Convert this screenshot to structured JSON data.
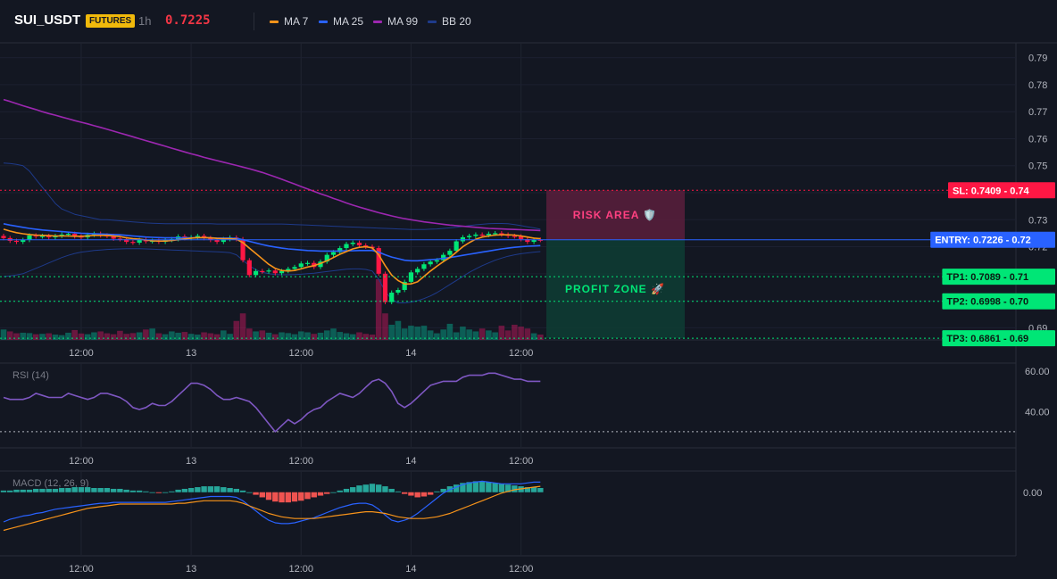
{
  "header": {
    "symbol": "SUI_USDT",
    "badge": "FUTURES",
    "timeframe": "1h",
    "last_price": "0.7225",
    "legend": [
      {
        "label": "MA 7",
        "color": "#f7931a"
      },
      {
        "label": "MA 25",
        "color": "#2962ff"
      },
      {
        "label": "MA 99",
        "color": "#9c27b0"
      },
      {
        "label": "BB 20",
        "color": "#1e3a8a"
      }
    ]
  },
  "colors": {
    "up": "#089981",
    "down": "#f23645",
    "up_bright": "#00e676",
    "down_bright": "#ff1744"
  },
  "chart_data": [
    {
      "type": "candlestick",
      "panel": "price",
      "x_tick_labels": [
        "12:00",
        "13",
        "12:00",
        "14",
        "12:00"
      ],
      "y_ticks": [
        0.69,
        0.7,
        0.71,
        0.72,
        0.73,
        0.74,
        0.75,
        0.76,
        0.77,
        0.78,
        0.79
      ],
      "y_tick_labels": [
        "0.69",
        "0.70",
        "0.71",
        "0.72",
        "0.73",
        "0.74",
        "0.75",
        "0.76",
        "0.77",
        "0.78",
        "0.79"
      ],
      "ylim": [
        0.6855,
        0.7955
      ],
      "closes": [
        0.7232,
        0.7222,
        0.7218,
        0.7225,
        0.7242,
        0.7238,
        0.724,
        0.7235,
        0.724,
        0.7245,
        0.7248,
        0.7238,
        0.7235,
        0.7244,
        0.7248,
        0.7242,
        0.724,
        0.723,
        0.7228,
        0.7218,
        0.7215,
        0.7225,
        0.722,
        0.7222,
        0.7218,
        0.7225,
        0.7228,
        0.7238,
        0.7232,
        0.7235,
        0.724,
        0.7232,
        0.7225,
        0.7218,
        0.7228,
        0.7234,
        0.7228,
        0.715,
        0.7095,
        0.711,
        0.7108,
        0.7112,
        0.7102,
        0.711,
        0.7118,
        0.7125,
        0.7138,
        0.714,
        0.7125,
        0.7145,
        0.717,
        0.718,
        0.7195,
        0.721,
        0.7215,
        0.7205,
        0.72,
        0.7195,
        0.71,
        0.6995,
        0.703,
        0.704,
        0.707,
        0.7105,
        0.7118,
        0.7135,
        0.7145,
        0.715,
        0.717,
        0.7185,
        0.722,
        0.7235,
        0.724,
        0.7245,
        0.7243,
        0.7248,
        0.725,
        0.7245,
        0.724,
        0.7238,
        0.7228,
        0.7218,
        0.7226,
        0.7225
      ],
      "volumes": [
        0.55,
        0.45,
        0.35,
        0.38,
        0.36,
        0.3,
        0.32,
        0.35,
        0.28,
        0.25,
        0.38,
        0.52,
        0.34,
        0.3,
        0.4,
        0.45,
        0.35,
        0.3,
        0.48,
        0.32,
        0.36,
        0.4,
        0.55,
        0.6,
        0.35,
        0.3,
        0.45,
        0.38,
        0.42,
        0.32,
        0.28,
        0.4,
        0.35,
        0.3,
        0.5,
        0.32,
        1.0,
        1.4,
        0.6,
        0.45,
        0.5,
        0.38,
        0.3,
        0.4,
        0.36,
        0.3,
        0.45,
        0.4,
        0.32,
        0.38,
        0.5,
        0.6,
        0.42,
        0.35,
        0.3,
        0.4,
        0.32,
        0.28,
        3.2,
        1.4,
        0.8,
        1.0,
        0.6,
        0.75,
        0.7,
        0.75,
        0.5,
        0.35,
        0.55,
        0.85,
        0.4,
        0.7,
        0.55,
        0.45,
        0.6,
        0.5,
        0.4,
        0.75,
        0.5,
        0.8,
        0.7,
        0.6,
        0.35,
        0.28
      ],
      "ma7": [
        0.7265,
        0.7258,
        0.7252,
        0.7248,
        0.7245,
        0.7243,
        0.7242,
        0.7241,
        0.724,
        0.724,
        0.724,
        0.7239,
        0.7239,
        0.724,
        0.7242,
        0.7242,
        0.7242,
        0.724,
        0.7238,
        0.7233,
        0.723,
        0.7228,
        0.7225,
        0.7222,
        0.7221,
        0.7221,
        0.7223,
        0.7226,
        0.7229,
        0.7232,
        0.7234,
        0.7234,
        0.7233,
        0.7231,
        0.723,
        0.723,
        0.7228,
        0.7215,
        0.7195,
        0.7175,
        0.7155,
        0.7135,
        0.712,
        0.7112,
        0.711,
        0.7112,
        0.7118,
        0.7125,
        0.713,
        0.7138,
        0.7148,
        0.716,
        0.7172,
        0.7182,
        0.7192,
        0.7198,
        0.72,
        0.7196,
        0.717,
        0.713,
        0.7095,
        0.7075,
        0.7062,
        0.7062,
        0.707,
        0.709,
        0.711,
        0.7128,
        0.7145,
        0.716,
        0.718,
        0.72,
        0.7215,
        0.7228,
        0.7236,
        0.724,
        0.7243,
        0.7244,
        0.7244,
        0.7243,
        0.724,
        0.7236,
        0.7232,
        0.723
      ],
      "ma25": [
        0.7285,
        0.728,
        0.7276,
        0.7272,
        0.7268,
        0.7265,
        0.7262,
        0.726,
        0.7258,
        0.7256,
        0.7254,
        0.7252,
        0.725,
        0.7249,
        0.7248,
        0.7247,
        0.7246,
        0.7245,
        0.7244,
        0.7242,
        0.724,
        0.7238,
        0.7236,
        0.7235,
        0.7234,
        0.7233,
        0.7233,
        0.7233,
        0.7233,
        0.7233,
        0.7233,
        0.7233,
        0.7233,
        0.7232,
        0.7232,
        0.7232,
        0.7231,
        0.7226,
        0.722,
        0.7214,
        0.7208,
        0.7203,
        0.7199,
        0.7195,
        0.7192,
        0.719,
        0.7188,
        0.7186,
        0.7185,
        0.7184,
        0.7184,
        0.7184,
        0.7184,
        0.7185,
        0.7185,
        0.7186,
        0.7186,
        0.7186,
        0.718,
        0.717,
        0.7162,
        0.7156,
        0.715,
        0.7148,
        0.7148,
        0.715,
        0.7152,
        0.7154,
        0.7157,
        0.716,
        0.7164,
        0.7168,
        0.7172,
        0.7176,
        0.718,
        0.7184,
        0.7188,
        0.7192,
        0.7195,
        0.7198,
        0.72,
        0.7202,
        0.7203,
        0.7204
      ],
      "ma99": [
        0.7745,
        0.7738,
        0.773,
        0.7722,
        0.7715,
        0.7708,
        0.77,
        0.7693,
        0.7687,
        0.768,
        0.7674,
        0.7667,
        0.7661,
        0.7655,
        0.7648,
        0.7642,
        0.7635,
        0.7628,
        0.7621,
        0.7614,
        0.7607,
        0.76,
        0.7593,
        0.7586,
        0.7579,
        0.7572,
        0.7565,
        0.7558,
        0.7551,
        0.7544,
        0.7538,
        0.7531,
        0.7525,
        0.7519,
        0.7513,
        0.7507,
        0.7501,
        0.7495,
        0.7489,
        0.7482,
        0.7475,
        0.7467,
        0.7459,
        0.745,
        0.7441,
        0.7432,
        0.7423,
        0.7414,
        0.7405,
        0.7396,
        0.7388,
        0.7379,
        0.7371,
        0.7362,
        0.7354,
        0.7347,
        0.734,
        0.7333,
        0.7326,
        0.732,
        0.7314,
        0.7309,
        0.7304,
        0.73,
        0.7296,
        0.7292,
        0.7289,
        0.7286,
        0.7283,
        0.728,
        0.7278,
        0.7276,
        0.7274,
        0.7272,
        0.727,
        0.7268,
        0.7267,
        0.7266,
        0.7265,
        0.7264,
        0.7263,
        0.7262,
        0.7261,
        0.726
      ],
      "bb_upper": [
        0.751,
        0.7508,
        0.7505,
        0.75,
        0.748,
        0.745,
        0.742,
        0.739,
        0.736,
        0.734,
        0.733,
        0.732,
        0.7315,
        0.731,
        0.7305,
        0.73,
        0.73,
        0.7298,
        0.7296,
        0.7294,
        0.7292,
        0.729,
        0.7288,
        0.7287,
        0.7286,
        0.7285,
        0.7285,
        0.7285,
        0.7285,
        0.7285,
        0.7285,
        0.7285,
        0.7285,
        0.7284,
        0.7284,
        0.7284,
        0.7284,
        0.7284,
        0.7284,
        0.7284,
        0.7284,
        0.7284,
        0.7284,
        0.7284,
        0.7283,
        0.7282,
        0.7281,
        0.728,
        0.7279,
        0.7278,
        0.7277,
        0.7276,
        0.7275,
        0.7274,
        0.7273,
        0.7272,
        0.7271,
        0.727,
        0.7269,
        0.7268,
        0.7267,
        0.7266,
        0.7265,
        0.7264,
        0.7264,
        0.7264,
        0.7265,
        0.7266,
        0.7268,
        0.727,
        0.7272,
        0.7275,
        0.7278,
        0.7281,
        0.7283,
        0.7285,
        0.7286,
        0.7286,
        0.7285,
        0.7282,
        0.7278,
        0.7274,
        0.727,
        0.7265
      ],
      "bb_lower": [
        0.709,
        0.7092,
        0.7095,
        0.71,
        0.711,
        0.712,
        0.713,
        0.714,
        0.715,
        0.716,
        0.7168,
        0.7175,
        0.718,
        0.7183,
        0.7186,
        0.7188,
        0.719,
        0.7191,
        0.7192,
        0.7193,
        0.7193,
        0.7193,
        0.7192,
        0.7191,
        0.719,
        0.7189,
        0.7188,
        0.7187,
        0.7186,
        0.7185,
        0.7184,
        0.7183,
        0.7182,
        0.7181,
        0.718,
        0.7178,
        0.717,
        0.715,
        0.713,
        0.7115,
        0.7105,
        0.71,
        0.7097,
        0.7096,
        0.7096,
        0.7097,
        0.7098,
        0.71,
        0.7102,
        0.7105,
        0.7108,
        0.7111,
        0.7114,
        0.7117,
        0.7118,
        0.7118,
        0.7116,
        0.711,
        0.708,
        0.7035,
        0.7005,
        0.6992,
        0.6992,
        0.6995,
        0.7,
        0.7008,
        0.7018,
        0.703,
        0.7045,
        0.706,
        0.7075,
        0.709,
        0.7105,
        0.7118,
        0.713,
        0.714,
        0.715,
        0.7158,
        0.7165,
        0.717,
        0.7174,
        0.7177,
        0.718,
        0.7182
      ],
      "levels": [
        {
          "key": "sl",
          "label": "SL: 0.7409",
          "axis_label": "0.74",
          "value": 0.7409,
          "color": "#ff1744",
          "style": "dotted"
        },
        {
          "key": "entry",
          "label": "ENTRY: 0.7226",
          "axis_label": "0.72",
          "value": 0.7226,
          "color": "#2962ff",
          "style": "solid"
        },
        {
          "key": "tp1",
          "label": "TP1: 0.7089",
          "axis_label": "0.71",
          "value": 0.7089,
          "color": "#00e676",
          "style": "dotted"
        },
        {
          "key": "tp2",
          "label": "TP2: 0.6998",
          "axis_label": "0.70",
          "value": 0.6998,
          "color": "#00e676",
          "style": "dotted"
        },
        {
          "key": "tp3",
          "label": "TP3: 0.6861",
          "axis_label": "0.69",
          "value": 0.6861,
          "color": "#00e676",
          "style": "dotted"
        }
      ],
      "zones": [
        {
          "key": "risk",
          "label": "RISK AREA 🛡️",
          "from": 0.7226,
          "to": 0.7409,
          "fill": "#5a1f3c",
          "text_color": "#ff4081"
        },
        {
          "key": "profit",
          "label": "PROFIT ZONE 🚀",
          "from": 0.6861,
          "to": 0.7226,
          "fill": "#0e3d34",
          "text_color": "#00e676"
        }
      ]
    },
    {
      "type": "line",
      "panel": "rsi",
      "title": "RSI (14)",
      "y_ticks": [
        40,
        60
      ],
      "y_tick_labels": [
        "40.00",
        "60.00"
      ],
      "ylim": [
        22,
        64
      ],
      "reference_line": 30,
      "x_tick_labels": [
        "12:00",
        "13",
        "12:00",
        "14",
        "12:00"
      ],
      "values": [
        47,
        46,
        46,
        46,
        47,
        49,
        48,
        47,
        47,
        47,
        49,
        48,
        47,
        46,
        47,
        49,
        49,
        48,
        47,
        45,
        42,
        41,
        42,
        44,
        43,
        43,
        45,
        48,
        51,
        54,
        54,
        53,
        51,
        48,
        46,
        46,
        47,
        46,
        45,
        42,
        38,
        34,
        30,
        33,
        36,
        34,
        36,
        39,
        41,
        42,
        45,
        47,
        49,
        48,
        47,
        49,
        52,
        55,
        56,
        54,
        50,
        44,
        42,
        44,
        47,
        50,
        53,
        54,
        55,
        55,
        55,
        57,
        58,
        58,
        58,
        59,
        59,
        58,
        57,
        56,
        56,
        55,
        55,
        55
      ]
    },
    {
      "type": "bar+line",
      "panel": "macd",
      "title": "MACD (12, 26, 9)",
      "y_ticks": [
        0.0
      ],
      "y_tick_labels": [
        "0.00"
      ],
      "ylim": [
        -0.0075,
        0.0025
      ],
      "x_tick_labels": [
        "12:00",
        "13",
        "12:00",
        "14",
        "12:00"
      ],
      "histogram": [
        0.0002,
        0.0002,
        0.0003,
        0.0003,
        0.0003,
        0.0004,
        0.0004,
        0.0004,
        0.0004,
        0.0005,
        0.0005,
        0.0006,
        0.0006,
        0.0006,
        0.0005,
        0.0005,
        0.0005,
        0.0004,
        0.0004,
        0.0003,
        0.0002,
        0.0002,
        0.0001,
        0.0,
        -0.0001,
        0.0,
        0.0001,
        0.0003,
        0.0004,
        0.0005,
        0.0006,
        0.0007,
        0.0007,
        0.0007,
        0.0006,
        0.0005,
        0.0004,
        0.0002,
        0.0,
        -0.0003,
        -0.0006,
        -0.0009,
        -0.0011,
        -0.0012,
        -0.0012,
        -0.0011,
        -0.001,
        -0.0008,
        -0.0006,
        -0.0004,
        -0.0002,
        0.0,
        0.0002,
        0.0004,
        0.0006,
        0.0008,
        0.0009,
        0.001,
        0.0009,
        0.0007,
        0.0004,
        0.0001,
        -0.0002,
        -0.0004,
        -0.0006,
        -0.0005,
        -0.0003,
        0.0001,
        0.0004,
        0.0007,
        0.0009,
        0.0011,
        0.0012,
        0.0013,
        0.0013,
        0.0012,
        0.0011,
        0.001,
        0.0009,
        0.0008,
        0.0007,
        0.0006,
        0.0006,
        0.0005
      ],
      "macd": [
        -0.0035,
        -0.0032,
        -0.003,
        -0.0028,
        -0.0027,
        -0.0025,
        -0.0024,
        -0.0022,
        -0.002,
        -0.0019,
        -0.0018,
        -0.0017,
        -0.0016,
        -0.0015,
        -0.0014,
        -0.0013,
        -0.0013,
        -0.0012,
        -0.0012,
        -0.0012,
        -0.0012,
        -0.0012,
        -0.0012,
        -0.0012,
        -0.0012,
        -0.0012,
        -0.0011,
        -0.001,
        -0.0009,
        -0.0008,
        -0.0007,
        -0.0006,
        -0.0005,
        -0.0005,
        -0.0005,
        -0.0005,
        -0.0006,
        -0.001,
        -0.0016,
        -0.0022,
        -0.0028,
        -0.0033,
        -0.0036,
        -0.0037,
        -0.0037,
        -0.0036,
        -0.0034,
        -0.0032,
        -0.003,
        -0.0027,
        -0.0024,
        -0.0021,
        -0.0018,
        -0.0016,
        -0.0014,
        -0.0013,
        -0.0013,
        -0.0015,
        -0.002,
        -0.0027,
        -0.0033,
        -0.0035,
        -0.0033,
        -0.003,
        -0.0025,
        -0.0019,
        -0.0013,
        -0.0007,
        -0.0001,
        0.0003,
        0.0006,
        0.0009,
        0.0011,
        0.0012,
        0.0013,
        0.0012,
        0.0011,
        0.001,
        0.001,
        0.001,
        0.001,
        0.0011,
        0.0012,
        0.0012
      ],
      "signal": [
        -0.0045,
        -0.0043,
        -0.0041,
        -0.0039,
        -0.0037,
        -0.0035,
        -0.0033,
        -0.0031,
        -0.0029,
        -0.0027,
        -0.0025,
        -0.0023,
        -0.0021,
        -0.0019,
        -0.0018,
        -0.0017,
        -0.0016,
        -0.0015,
        -0.0014,
        -0.0014,
        -0.0014,
        -0.0014,
        -0.0014,
        -0.0014,
        -0.0014,
        -0.0014,
        -0.0014,
        -0.0013,
        -0.0013,
        -0.0012,
        -0.0011,
        -0.001,
        -0.001,
        -0.001,
        -0.001,
        -0.001,
        -0.0011,
        -0.0013,
        -0.0016,
        -0.0019,
        -0.0022,
        -0.0025,
        -0.0027,
        -0.0029,
        -0.003,
        -0.0031,
        -0.0031,
        -0.0031,
        -0.0031,
        -0.003,
        -0.0029,
        -0.0028,
        -0.0027,
        -0.0026,
        -0.0025,
        -0.0024,
        -0.0023,
        -0.0023,
        -0.0024,
        -0.0025,
        -0.0027,
        -0.0029,
        -0.003,
        -0.0031,
        -0.0031,
        -0.0031,
        -0.003,
        -0.0029,
        -0.0027,
        -0.0025,
        -0.0022,
        -0.0019,
        -0.0016,
        -0.0013,
        -0.001,
        -0.0007,
        -0.0004,
        -0.0001,
        0.0001,
        0.0003,
        0.0004,
        0.0005,
        0.0006,
        0.0007
      ]
    }
  ]
}
